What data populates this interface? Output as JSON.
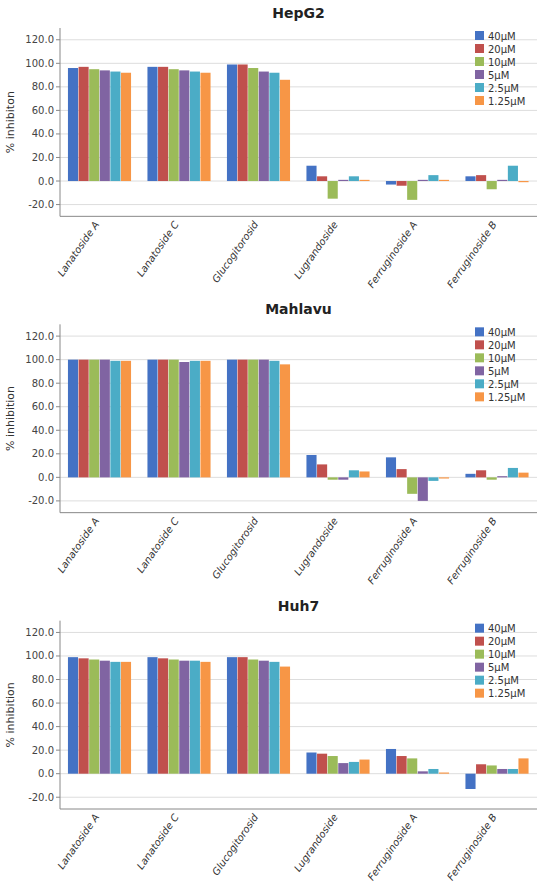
{
  "chart_data": [
    {
      "type": "bar",
      "title": "HepG2",
      "y_label": "% inhibiton",
      "categories": [
        "Lanatoside A",
        "Lanatoside C",
        "Glucogitorosid",
        "Lugrandoside",
        "Ferruginoside A",
        "Ferruginoside B"
      ],
      "series": [
        {
          "name": "40μM",
          "color": "#4472c4",
          "values": [
            96,
            97,
            99,
            13,
            -3,
            4
          ]
        },
        {
          "name": "20μM",
          "color": "#c0504d",
          "values": [
            97,
            97,
            99,
            4,
            -4,
            5
          ]
        },
        {
          "name": "10μM",
          "color": "#9bbb59",
          "values": [
            95,
            95,
            96,
            -15,
            -16,
            -7
          ]
        },
        {
          "name": "5μM",
          "color": "#8064a2",
          "values": [
            94,
            94,
            93,
            1,
            1,
            1
          ]
        },
        {
          "name": "2.5μM",
          "color": "#4bacc6",
          "values": [
            93,
            93,
            92,
            4,
            5,
            13
          ]
        },
        {
          "name": "1.25μM",
          "color": "#f79646",
          "values": [
            92,
            92,
            86,
            1,
            1,
            -1
          ]
        }
      ],
      "ylim": [
        -30,
        130
      ],
      "yticks": [
        {
          "value": -20,
          "label": "-20.0"
        },
        {
          "value": 0,
          "label": "0.0"
        },
        {
          "value": 20,
          "label": "20.0"
        },
        {
          "value": 40,
          "label": "40.0"
        },
        {
          "value": 60,
          "label": "60.0"
        },
        {
          "value": 80,
          "label": "80.0"
        },
        {
          "value": 100,
          "label": "100.0"
        },
        {
          "value": 120,
          "label": "120.0"
        }
      ],
      "grid": true,
      "legend": "upper right"
    },
    {
      "type": "bar",
      "title": "Mahlavu",
      "y_label": "% inhibition",
      "categories": [
        "Lanatoside A",
        "Lanatoside C",
        "Glucogitorosid",
        "Lugrandoside",
        "Ferruginoside A",
        "Ferruginoside B"
      ],
      "series": [
        {
          "name": "40μM",
          "color": "#4472c4",
          "values": [
            100,
            100,
            100,
            19,
            17,
            3
          ]
        },
        {
          "name": "20μM",
          "color": "#c0504d",
          "values": [
            100,
            100,
            100,
            11,
            7,
            6
          ]
        },
        {
          "name": "10μM",
          "color": "#9bbb59",
          "values": [
            100,
            100,
            100,
            -2,
            -14,
            -2
          ]
        },
        {
          "name": "5μM",
          "color": "#8064a2",
          "values": [
            100,
            98,
            100,
            -2,
            -20,
            1
          ]
        },
        {
          "name": "2.5μM",
          "color": "#4bacc6",
          "values": [
            99,
            99,
            99,
            6,
            -3,
            8
          ]
        },
        {
          "name": "1.25μM",
          "color": "#f79646",
          "values": [
            99,
            99,
            96,
            5,
            -1,
            4
          ]
        }
      ],
      "ylim": [
        -30,
        130
      ],
      "yticks": [
        {
          "value": -20,
          "label": "-20.0"
        },
        {
          "value": 0,
          "label": "0.0"
        },
        {
          "value": 20,
          "label": "20.0"
        },
        {
          "value": 40,
          "label": "40.0"
        },
        {
          "value": 60,
          "label": "60.0"
        },
        {
          "value": 80,
          "label": "80.0"
        },
        {
          "value": 100,
          "label": "100.0"
        },
        {
          "value": 120,
          "label": "120.0"
        }
      ],
      "grid": true,
      "legend": "upper right"
    },
    {
      "type": "bar",
      "title": "Huh7",
      "y_label": "% inhibition",
      "categories": [
        "Lanatoside A",
        "Lanatoside C",
        "Glucogitorosid",
        "Lugrandoside",
        "Ferruginoside A",
        "Ferruginoside B"
      ],
      "series": [
        {
          "name": "40μM",
          "color": "#4472c4",
          "values": [
            99,
            99,
            99,
            18,
            21,
            -13
          ]
        },
        {
          "name": "20μM",
          "color": "#c0504d",
          "values": [
            98,
            98,
            99,
            17,
            15,
            8
          ]
        },
        {
          "name": "10μM",
          "color": "#9bbb59",
          "values": [
            97,
            97,
            97,
            15,
            13,
            7
          ]
        },
        {
          "name": "5μM",
          "color": "#8064a2",
          "values": [
            96,
            96,
            96,
            9,
            2,
            4
          ]
        },
        {
          "name": "2.5μM",
          "color": "#4bacc6",
          "values": [
            95,
            96,
            95,
            10,
            4,
            4
          ]
        },
        {
          "name": "1.25μM",
          "color": "#f79646",
          "values": [
            95,
            95,
            91,
            12,
            1,
            13
          ]
        }
      ],
      "ylim": [
        -30,
        130
      ],
      "yticks": [
        {
          "value": -20,
          "label": "-20.0"
        },
        {
          "value": 0,
          "label": "0.0"
        },
        {
          "value": 20,
          "label": "20.0"
        },
        {
          "value": 40,
          "label": "40.0"
        },
        {
          "value": 60,
          "label": "60.0"
        },
        {
          "value": 80,
          "label": "80.0"
        },
        {
          "value": 100,
          "label": "100.0"
        },
        {
          "value": 120,
          "label": "120.0"
        }
      ],
      "grid": true,
      "legend": "upper right"
    }
  ]
}
